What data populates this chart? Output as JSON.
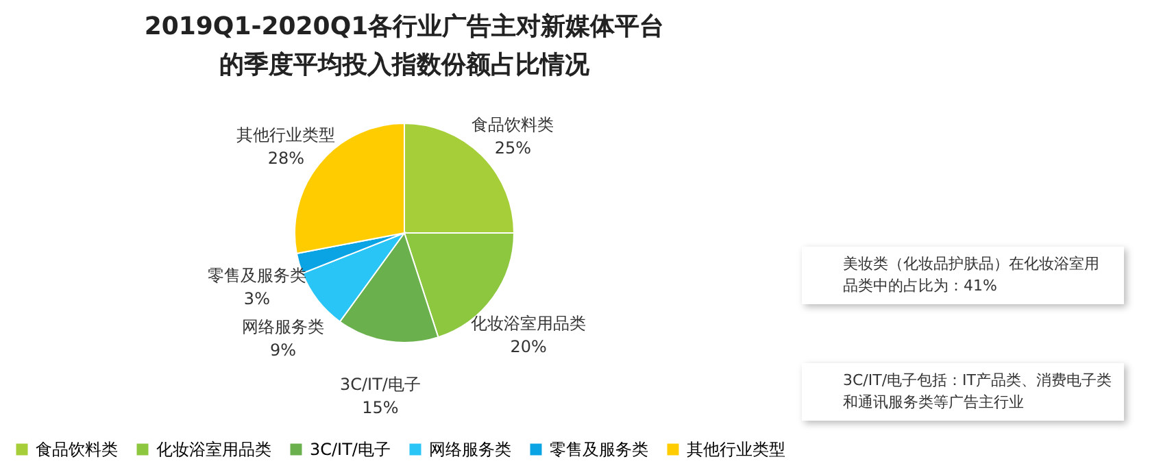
{
  "chart_data": {
    "type": "pie",
    "title": "2019Q1-2020Q1各行业广告主对新媒体平台的季度平均投入指数份额占比情况",
    "categories": [
      "食品饮料类",
      "化妆浴室用品类",
      "3C/IT/电子",
      "网络服务类",
      "零售及服务类",
      "其他行业类型"
    ],
    "values": [
      25,
      20,
      15,
      9,
      3,
      28
    ],
    "value_labels": [
      "25%",
      "20%",
      "15%",
      "9%",
      "3%",
      "28%"
    ],
    "colors": [
      "#a6ce39",
      "#8dc63f",
      "#6ab04c",
      "#29c5f6",
      "#0aa3e3",
      "#ffcc00"
    ],
    "legend": "bottom",
    "annotations": [
      "美妆类（化妆品护肤品）在化妆浴室用品类中的占比为：41%",
      "3C/IT/电子包括：IT产品类、消费电子类和通讯服务类等广告主行业"
    ]
  }
}
